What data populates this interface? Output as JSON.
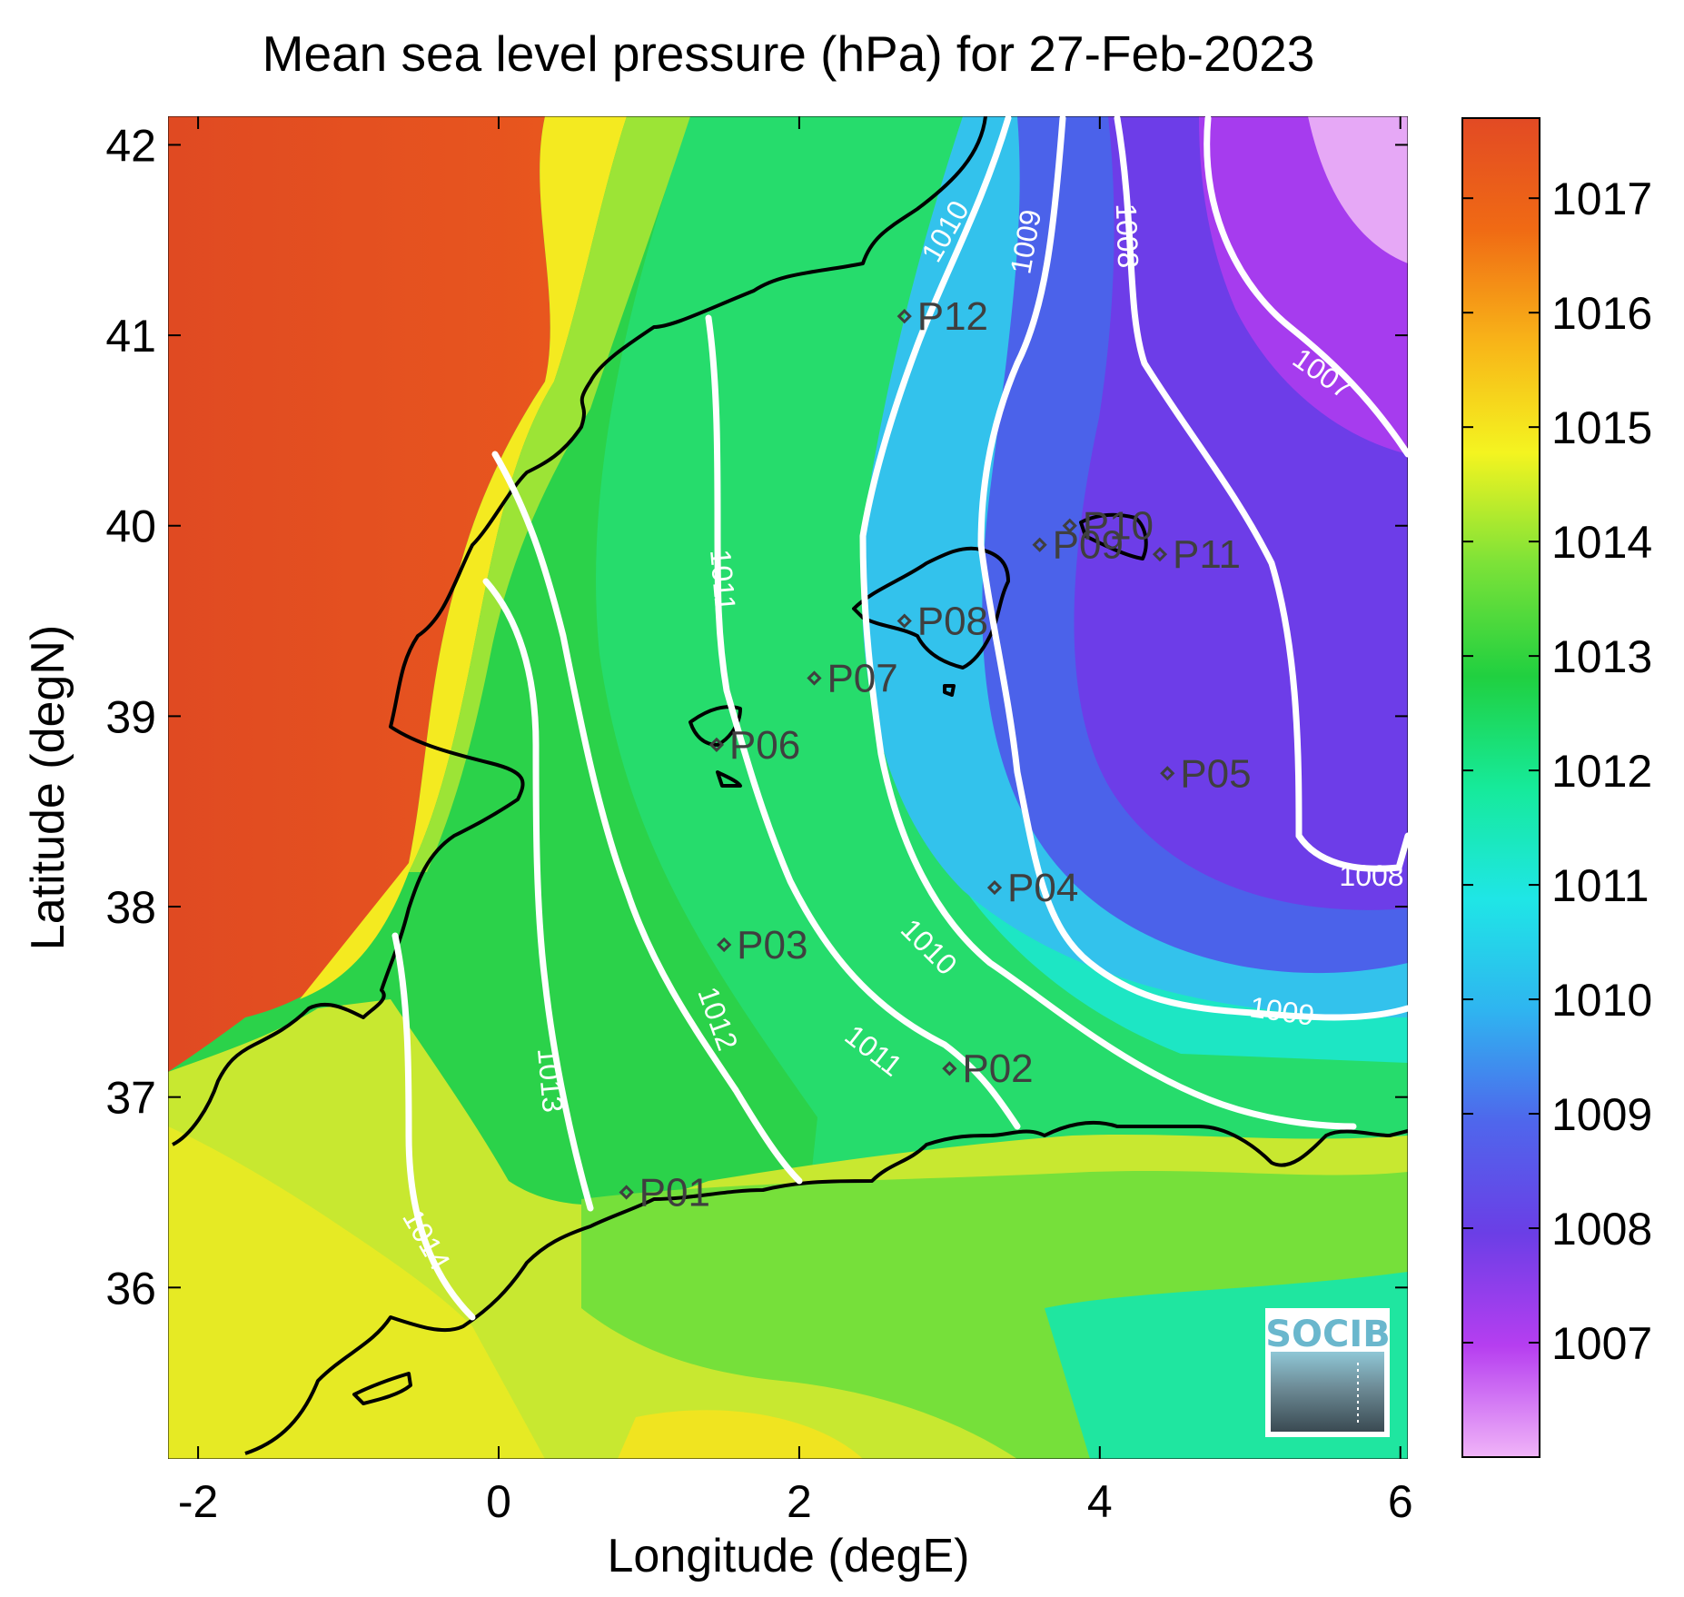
{
  "title": "Mean sea level pressure (hPa) for 27-Feb-2023",
  "x_axis": {
    "label": "Longitude (degE)",
    "ticks": [
      "-2",
      "0",
      "2",
      "4",
      "6"
    ],
    "range": [
      -2.2,
      6.05
    ]
  },
  "y_axis": {
    "label": "Latitude (degN)",
    "ticks": [
      "36",
      "37",
      "38",
      "39",
      "40",
      "41",
      "42"
    ],
    "range": [
      35.1,
      42.15
    ]
  },
  "colorbar": {
    "ticks": [
      "1007",
      "1008",
      "1009",
      "1010",
      "1011",
      "1012",
      "1013",
      "1014",
      "1015",
      "1016",
      "1017"
    ],
    "range": [
      1006,
      1017.7
    ],
    "colors": [
      "#f0b4f8",
      "#b63ef0",
      "#6b3ee6",
      "#4f66ec",
      "#2fb4f0",
      "#1fe6e6",
      "#16ea9a",
      "#20d040",
      "#7ce238",
      "#f4f420",
      "#f8b418",
      "#f06a14",
      "#e24a24"
    ]
  },
  "chart_data": {
    "type": "heatmap",
    "variable": "Mean sea level pressure",
    "unit": "hPa",
    "date": "27-Feb-2023",
    "contour_levels": [
      1007,
      1008,
      1009,
      1010,
      1011,
      1012,
      1013,
      1014
    ],
    "contour_labels": [
      "1007",
      "1008",
      "1008",
      "1009",
      "1009",
      "1010",
      "1010",
      "1011",
      "1011",
      "1012",
      "1013",
      "1014"
    ],
    "stations": [
      {
        "name": "P01",
        "lon": 0.85,
        "lat": 36.5
      },
      {
        "name": "P02",
        "lon": 3.0,
        "lat": 37.15
      },
      {
        "name": "P03",
        "lon": 1.5,
        "lat": 37.8
      },
      {
        "name": "P04",
        "lon": 3.3,
        "lat": 38.1
      },
      {
        "name": "P05",
        "lon": 4.45,
        "lat": 38.7
      },
      {
        "name": "P06",
        "lon": 1.45,
        "lat": 38.85
      },
      {
        "name": "P07",
        "lon": 2.1,
        "lat": 39.2
      },
      {
        "name": "P08",
        "lon": 2.7,
        "lat": 39.5
      },
      {
        "name": "P09",
        "lon": 3.6,
        "lat": 39.9
      },
      {
        "name": "P10",
        "lon": 3.8,
        "lat": 40.0
      },
      {
        "name": "P11",
        "lon": 4.4,
        "lat": 39.85
      },
      {
        "name": "P12",
        "lon": 2.7,
        "lat": 41.1
      }
    ]
  },
  "logo": {
    "text": "SOCIB"
  }
}
